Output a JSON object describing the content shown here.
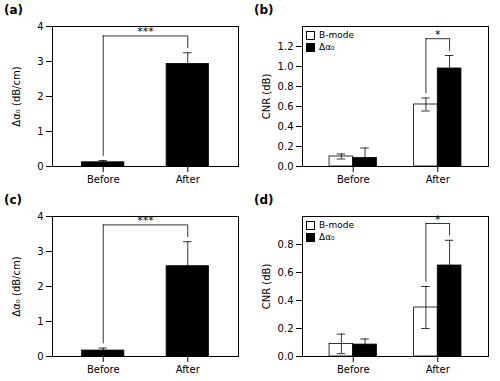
{
  "chart_data": [
    {
      "type": "bar",
      "title": "(a)",
      "categories": [
        "Before",
        "After"
      ],
      "values": [
        0.12,
        2.93
      ],
      "errors": [
        0.05,
        0.32
      ],
      "colors": [
        "black",
        "black"
      ],
      "ylabel": "Δα₀ (dB/cm)",
      "ylim": [
        0,
        4
      ],
      "yticks": [
        0,
        1,
        2,
        3,
        4
      ],
      "grid": false,
      "annotations": [
        {
          "text": "***",
          "categories": [
            "Before",
            "After"
          ]
        }
      ]
    },
    {
      "type": "bar",
      "title": "(b)",
      "categories": [
        "Before",
        "After"
      ],
      "series": [
        {
          "name": "B-mode",
          "color": "white",
          "values": [
            0.1,
            0.62
          ],
          "errors": [
            0.025,
            0.065
          ]
        },
        {
          "name": "Δα₀",
          "color": "black",
          "values": [
            0.085,
            0.98
          ],
          "errors": [
            0.1,
            0.13
          ]
        }
      ],
      "ylabel": "CNR (dB)",
      "ylim": [
        0,
        1.4
      ],
      "yticks": [
        {
          "value": 0,
          "label": "0.0"
        },
        0.2,
        0.4,
        0.6,
        0.8,
        {
          "value": 1,
          "label": "1.0"
        },
        1.2
      ],
      "legend": "upper left",
      "grid": false,
      "annotations": [
        {
          "text": "*",
          "category": "After",
          "series": [
            "B-mode",
            "Δα₀"
          ]
        }
      ]
    },
    {
      "type": "bar",
      "title": "(c)",
      "categories": [
        "Before",
        "After"
      ],
      "values": [
        0.17,
        2.58
      ],
      "errors": [
        0.07,
        0.7
      ],
      "colors": [
        "black",
        "black"
      ],
      "ylabel": "Δα₀ (dB/cm)",
      "ylim": [
        0,
        4
      ],
      "yticks": [
        0,
        1,
        2,
        3,
        4
      ],
      "grid": false,
      "annotations": [
        {
          "text": "***",
          "categories": [
            "Before",
            "After"
          ]
        }
      ]
    },
    {
      "type": "bar",
      "title": "(d)",
      "categories": [
        "Before",
        "After"
      ],
      "series": [
        {
          "name": "B-mode",
          "color": "white",
          "values": [
            0.09,
            0.35
          ],
          "errors": [
            0.07,
            0.15
          ]
        },
        {
          "name": "Δα₀",
          "color": "black",
          "values": [
            0.085,
            0.65
          ],
          "errors": [
            0.04,
            0.18
          ]
        }
      ],
      "ylabel": "CNR (dB)",
      "ylim": [
        0,
        1.0
      ],
      "yticks": [
        {
          "value": 0,
          "label": "0.0"
        },
        0.2,
        0.4,
        0.6,
        0.8
      ],
      "legend": "upper left",
      "grid": false,
      "annotations": [
        {
          "text": "*",
          "category": "After",
          "series": [
            "B-mode",
            "Δα₀"
          ]
        }
      ]
    }
  ]
}
